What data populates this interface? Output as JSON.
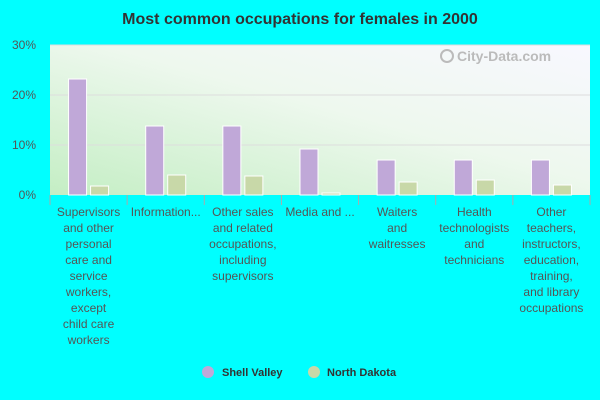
{
  "chart_data": {
    "type": "bar",
    "title": "Most common occupations for females in 2000",
    "xlabel": "",
    "ylabel": "",
    "ylim": [
      0,
      30
    ],
    "yticks": [
      "0%",
      "10%",
      "20%",
      "30%"
    ],
    "categories": [
      [
        "Supervisors",
        "and other",
        "personal",
        "care and",
        "service",
        "workers,",
        "except",
        "child care",
        "workers"
      ],
      [
        "Information..."
      ],
      [
        "Other sales",
        "and related",
        "occupations,",
        "including",
        "supervisors"
      ],
      [
        "Media and ..."
      ],
      [
        "Waiters",
        "and",
        "waitresses"
      ],
      [
        "Health",
        "technologists",
        "and",
        "technicians"
      ],
      [
        "Other",
        "teachers,",
        "instructors,",
        "education,",
        "training,",
        "and library",
        "occupations"
      ]
    ],
    "series": [
      {
        "name": "Shell Valley",
        "values": [
          23.2,
          13.8,
          13.8,
          9.2,
          7.0,
          7.0,
          7.0
        ],
        "color": "#c0a8d8"
      },
      {
        "name": "North Dakota",
        "values": [
          1.8,
          4.0,
          3.8,
          0.4,
          2.6,
          3.0,
          2.0
        ],
        "color": "#c8d8a8"
      }
    ],
    "grid": true,
    "legend": "bottom"
  },
  "watermark": "City-Data.com"
}
